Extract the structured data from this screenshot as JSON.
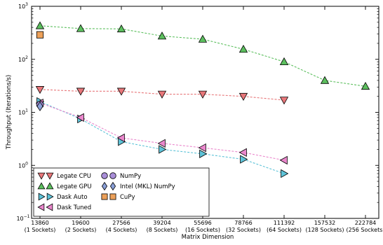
{
  "chart_data": {
    "type": "line",
    "title": "",
    "xlabel": "Matrix Dimension",
    "ylabel": "Throughput (Iterations/s)",
    "yscale": "log",
    "ylim": [
      0.1,
      1000
    ],
    "y_ticks": [
      {
        "value": 0.1,
        "base": "10",
        "exp": "−1"
      },
      {
        "value": 1,
        "base": "10",
        "exp": "0"
      },
      {
        "value": 10,
        "base": "10",
        "exp": "1"
      },
      {
        "value": 100,
        "base": "10",
        "exp": "2"
      },
      {
        "value": 1000,
        "base": "10",
        "exp": "3"
      }
    ],
    "categories": [
      {
        "value": "13860",
        "sub": "(1 Sockets)"
      },
      {
        "value": "19600",
        "sub": "(2 Sockets)"
      },
      {
        "value": "27566",
        "sub": "(4 Sockets)"
      },
      {
        "value": "39204",
        "sub": "(8 Sockets)"
      },
      {
        "value": "55696",
        "sub": "(16 Sockets)"
      },
      {
        "value": "78766",
        "sub": "(32 Sockets)"
      },
      {
        "value": "111392",
        "sub": "(64 Sockets)"
      },
      {
        "value": "157532",
        "sub": "(128 Sockets)"
      },
      {
        "value": "222784",
        "sub": "(256 Sockets)"
      }
    ],
    "grid": false,
    "legend_position": "bottom-left",
    "series": [
      {
        "name": "Legate CPU",
        "marker": "triangle-down",
        "color": "#e8777a",
        "dashed": true,
        "values": [
          27,
          25,
          25,
          22,
          22,
          20,
          17,
          null,
          null
        ]
      },
      {
        "name": "Legate GPU",
        "marker": "triangle-up",
        "color": "#5cbf5e",
        "dashed": true,
        "values": [
          430,
          380,
          375,
          275,
          240,
          155,
          90,
          40,
          31
        ]
      },
      {
        "name": "Dask Auto",
        "marker": "triangle-right",
        "color": "#5ec3d8",
        "dashed": true,
        "values": [
          16,
          7.5,
          2.8,
          2.0,
          1.65,
          1.3,
          0.7,
          null,
          null
        ]
      },
      {
        "name": "Dask Tuned",
        "marker": "triangle-left",
        "color": "#ea87cc",
        "dashed": true,
        "values": [
          15,
          8.0,
          3.3,
          2.6,
          2.15,
          1.75,
          1.25,
          null,
          null
        ]
      },
      {
        "name": "NumPy",
        "marker": "circle",
        "color": "#a98ed8",
        "dashed": false,
        "values": [
          14,
          null,
          null,
          null,
          null,
          null,
          null,
          null,
          null
        ]
      },
      {
        "name": "Intel (MKL) NumPy",
        "marker": "diamond",
        "color": "#8a9fd8",
        "dashed": false,
        "values": [
          13,
          null,
          null,
          null,
          null,
          null,
          null,
          null,
          null
        ]
      },
      {
        "name": "CuPy",
        "marker": "square",
        "color": "#eda15a",
        "dashed": false,
        "values": [
          290,
          null,
          null,
          null,
          null,
          null,
          null,
          null,
          null
        ]
      }
    ]
  }
}
